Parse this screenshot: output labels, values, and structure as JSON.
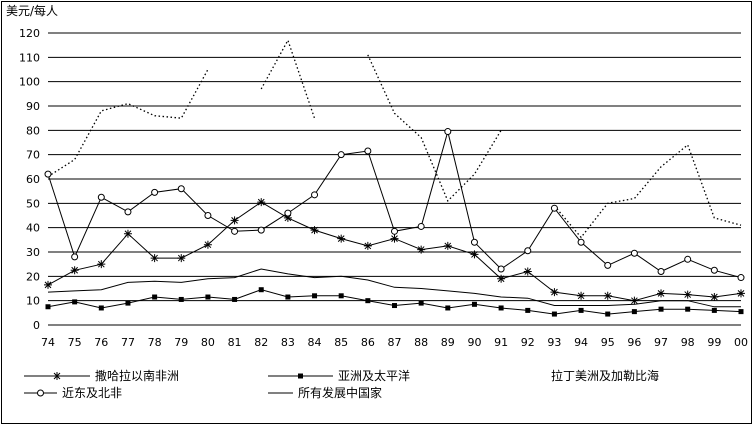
{
  "chart_data": {
    "type": "line",
    "ylabel": "美元/每人",
    "ylim": [
      0,
      120
    ],
    "yticks": [
      0,
      10,
      20,
      30,
      40,
      50,
      60,
      70,
      80,
      90,
      100,
      110,
      120
    ],
    "categories": [
      "74",
      "75",
      "76",
      "77",
      "78",
      "79",
      "80",
      "81",
      "82",
      "83",
      "84",
      "85",
      "86",
      "87",
      "88",
      "89",
      "90",
      "91",
      "92",
      "93",
      "94",
      "95",
      "96",
      "97",
      "98",
      "99",
      "00"
    ],
    "grid": true,
    "legend_position": "bottom",
    "series": [
      {
        "name": "撒哈拉以南非洲",
        "style": "line-star",
        "values": [
          16.5,
          22.5,
          25,
          37.5,
          27.5,
          27.5,
          33,
          43,
          50.5,
          44,
          39,
          35.5,
          32.5,
          35.5,
          31,
          32.5,
          29,
          19,
          22,
          13.5,
          12,
          12,
          10,
          13,
          12.5,
          11.5,
          13
        ]
      },
      {
        "name": "亚洲及太平洋",
        "style": "line-square",
        "values": [
          7.5,
          9.5,
          7,
          9,
          11.5,
          10.5,
          11.5,
          10.5,
          14.5,
          11.5,
          12,
          12,
          10,
          8,
          9,
          7,
          8.5,
          7,
          6,
          4.5,
          6,
          4.5,
          5.5,
          6.5,
          6.5,
          6,
          5.5
        ]
      },
      {
        "name": "拉丁美洲及加勒比海",
        "style": "dotted",
        "values": [
          61,
          68,
          88,
          91,
          86,
          85,
          105,
          null,
          97,
          117,
          85,
          null,
          111,
          87,
          77,
          51,
          62,
          80,
          null,
          49,
          36,
          50,
          52,
          65,
          74,
          44,
          41
        ]
      },
      {
        "name": "近东及北非",
        "style": "line-circle",
        "values": [
          62,
          28,
          52.5,
          46.5,
          54.5,
          56,
          45,
          38.5,
          39,
          46,
          53.5,
          70,
          71.5,
          38.5,
          40.5,
          79.5,
          34,
          23,
          30.5,
          48,
          34,
          24.5,
          29.5,
          22,
          27,
          22.5,
          19.5
        ]
      },
      {
        "name": "所有发展中国家",
        "style": "line",
        "values": [
          13.5,
          14,
          14.5,
          17.5,
          18,
          17.5,
          19,
          19.5,
          23,
          21,
          19.5,
          20,
          18.5,
          15.5,
          15,
          14,
          13,
          11.5,
          11,
          8,
          8,
          8,
          8.5,
          10,
          10,
          7.5,
          7.5
        ]
      }
    ]
  }
}
